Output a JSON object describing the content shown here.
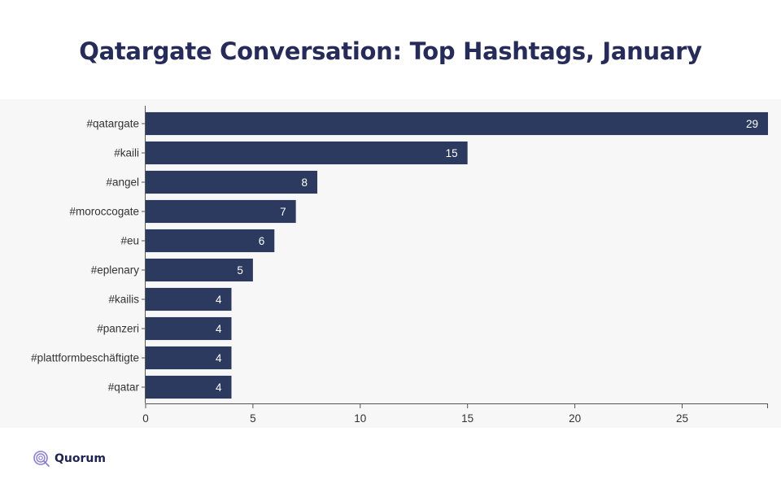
{
  "page": {
    "title": "Qatargate Conversation: Top Hashtags, January",
    "brand": "Quorum"
  },
  "colors": {
    "bar": "#2c3a5f",
    "title": "#262b5a",
    "axis": "#555555",
    "label": "#333333",
    "value_label": "#ffffff",
    "brand_accent": "#8a7fd1"
  },
  "icons": {
    "logo": "quorum-logo-icon"
  },
  "chart_data": {
    "type": "bar",
    "orientation": "horizontal",
    "title": "Qatargate Conversation: Top Hashtags, January",
    "xlabel": "",
    "ylabel": "",
    "categories": [
      "#qatargate",
      "#kaili",
      "#angel",
      "#moroccogate",
      "#eu",
      "#eplenary",
      "#kailis",
      "#panzeri",
      "#plattformbeschäftigte",
      "#qatar"
    ],
    "values": [
      29,
      15,
      8,
      7,
      6,
      5,
      4,
      4,
      4,
      4
    ],
    "data_labels": [
      "29",
      "15",
      "8",
      "7",
      "6",
      "5",
      "4",
      "4",
      "4",
      "4"
    ],
    "xlim": [
      0,
      29
    ],
    "xticks": [
      0,
      5,
      10,
      15,
      20,
      25
    ],
    "grid": false,
    "legend": "none"
  }
}
